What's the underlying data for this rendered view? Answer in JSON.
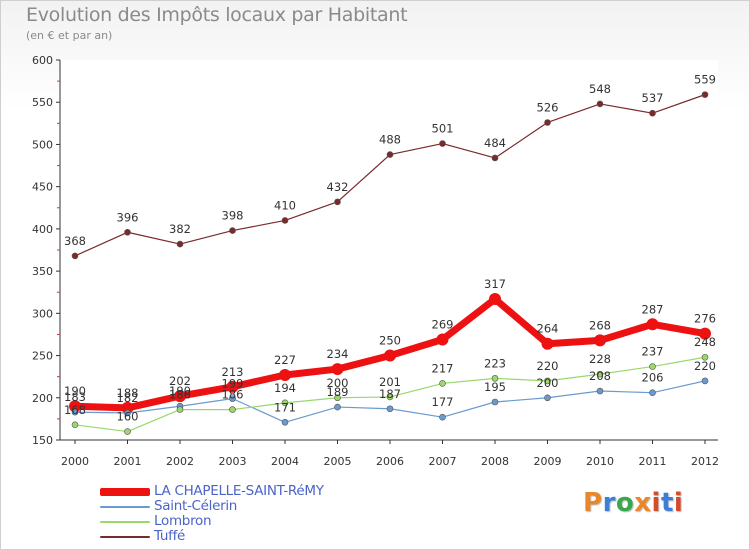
{
  "title": "Evolution des Impôts locaux par Habitant",
  "subtitle": "(en € et par an)",
  "logo": {
    "text": "Proxiti",
    "letters": [
      "P",
      "r",
      "o",
      "x",
      "i",
      "t",
      "i"
    ],
    "colors": [
      "#e8882a",
      "#3b7fd6",
      "#3aa84a",
      "#e8882a",
      "#d64b2a",
      "#3b7fd6",
      "#d64b2a"
    ]
  },
  "chart_data": {
    "type": "line",
    "title": "Evolution des Impôts locaux par Habitant",
    "subtitle": "(en € et par an)",
    "xlabel": "",
    "ylabel": "",
    "ylim": [
      150,
      600
    ],
    "yticks": [
      150,
      200,
      250,
      300,
      350,
      400,
      450,
      500,
      550,
      600
    ],
    "categories": [
      "2000",
      "2001",
      "2002",
      "2003",
      "2004",
      "2005",
      "2006",
      "2007",
      "2008",
      "2009",
      "2010",
      "2011",
      "2012"
    ],
    "legend_position": "bottom-left",
    "series": [
      {
        "name": "LA CHAPELLE-SAINT-RéMY",
        "color": "#ee1111",
        "emphasis": "thick",
        "values": [
          190,
          188,
          202,
          213,
          227,
          234,
          250,
          269,
          317,
          264,
          268,
          287,
          276
        ],
        "labels": [
          "190",
          "188",
          "202",
          "213",
          "227",
          "234",
          "250",
          "269",
          "317",
          "264",
          "268",
          "287",
          "276"
        ]
      },
      {
        "name": "Saint-Célerin",
        "color": "#6a9ad0",
        "emphasis": "thin",
        "values": [
          183,
          182,
          190,
          199,
          171,
          189,
          187,
          177,
          195,
          200,
          208,
          206,
          220
        ],
        "labels": [
          "183",
          "182",
          "190",
          "199",
          "171",
          "189",
          "187",
          "177",
          "195",
          "200",
          "208",
          "206",
          "220"
        ]
      },
      {
        "name": "Lombron",
        "color": "#9ad86a",
        "emphasis": "thin",
        "values": [
          168,
          160,
          186,
          186,
          194,
          200,
          201,
          217,
          223,
          220,
          228,
          237,
          248
        ],
        "labels": [
          "168",
          "160",
          "186",
          "186",
          "194",
          "200",
          "201",
          "217",
          "223",
          "220",
          "228",
          "237",
          "248"
        ]
      },
      {
        "name": "Tuffé",
        "color": "#7a2a2a",
        "emphasis": "thin",
        "values": [
          368,
          396,
          382,
          398,
          410,
          432,
          488,
          501,
          484,
          526,
          548,
          537,
          559
        ],
        "labels": [
          "368",
          "396",
          "382",
          "398",
          "410",
          "432",
          "488",
          "501",
          "484",
          "526",
          "548",
          "537",
          "559"
        ]
      }
    ]
  }
}
